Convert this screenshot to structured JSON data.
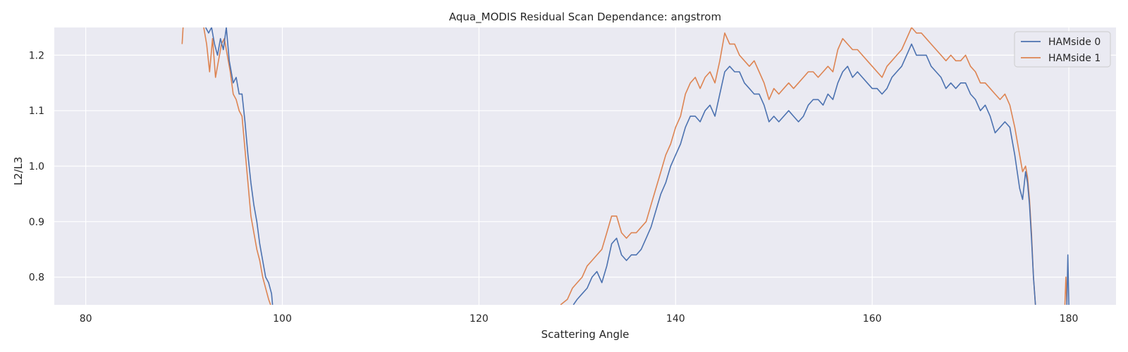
{
  "chart_data": {
    "type": "line",
    "title": "Aqua_MODIS Residual Scan Dependance: angstrom",
    "xlabel": "Scattering Angle",
    "ylabel": "L2/L3",
    "xlim": [
      76.8,
      184.8
    ],
    "ylim": [
      0.75,
      1.25
    ],
    "xticks": [
      80,
      100,
      120,
      140,
      160,
      180
    ],
    "yticks": [
      0.8,
      0.9,
      1.0,
      1.1,
      1.2
    ],
    "xtick_labels": [
      "80",
      "100",
      "120",
      "140",
      "160",
      "180"
    ],
    "ytick_labels": [
      "0.8",
      "0.9",
      "1.0",
      "1.1",
      "1.2"
    ],
    "grid": true,
    "legend_position": "top-right",
    "series": [
      {
        "name": "HAMside 0",
        "color": "#4c72b0",
        "segments": [
          [
            [
              92.2,
              1.25
            ],
            [
              92.5,
              1.24
            ],
            [
              92.8,
              1.25
            ],
            [
              93.1,
              1.22
            ],
            [
              93.4,
              1.2
            ],
            [
              93.7,
              1.23
            ],
            [
              94.0,
              1.21
            ],
            [
              94.3,
              1.25
            ],
            [
              94.6,
              1.19
            ],
            [
              95.0,
              1.15
            ],
            [
              95.3,
              1.16
            ],
            [
              95.6,
              1.13
            ],
            [
              95.9,
              1.13
            ],
            [
              96.2,
              1.08
            ],
            [
              96.5,
              1.02
            ],
            [
              96.8,
              0.97
            ],
            [
              97.1,
              0.93
            ],
            [
              97.4,
              0.9
            ],
            [
              97.7,
              0.86
            ],
            [
              98.0,
              0.83
            ],
            [
              98.3,
              0.8
            ],
            [
              98.6,
              0.79
            ],
            [
              98.9,
              0.77
            ],
            [
              99.0,
              0.75
            ]
          ],
          [
            [
              129.6,
              0.75
            ],
            [
              130.0,
              0.76
            ],
            [
              130.5,
              0.77
            ],
            [
              131.0,
              0.78
            ],
            [
              131.5,
              0.8
            ],
            [
              132.0,
              0.81
            ],
            [
              132.5,
              0.79
            ],
            [
              133.0,
              0.82
            ],
            [
              133.5,
              0.86
            ],
            [
              134.0,
              0.87
            ],
            [
              134.5,
              0.84
            ],
            [
              135.0,
              0.83
            ],
            [
              135.5,
              0.84
            ],
            [
              136.0,
              0.84
            ],
            [
              136.5,
              0.85
            ],
            [
              137.0,
              0.87
            ],
            [
              137.5,
              0.89
            ],
            [
              138.0,
              0.92
            ],
            [
              138.5,
              0.95
            ],
            [
              139.0,
              0.97
            ],
            [
              139.5,
              1.0
            ],
            [
              140.0,
              1.02
            ],
            [
              140.5,
              1.04
            ],
            [
              141.0,
              1.07
            ],
            [
              141.5,
              1.09
            ],
            [
              142.0,
              1.09
            ],
            [
              142.5,
              1.08
            ],
            [
              143.0,
              1.1
            ],
            [
              143.5,
              1.11
            ],
            [
              144.0,
              1.09
            ],
            [
              144.5,
              1.13
            ],
            [
              145.0,
              1.17
            ],
            [
              145.5,
              1.18
            ],
            [
              146.0,
              1.17
            ],
            [
              146.5,
              1.17
            ],
            [
              147.0,
              1.15
            ],
            [
              147.5,
              1.14
            ],
            [
              148.0,
              1.13
            ],
            [
              148.5,
              1.13
            ],
            [
              149.0,
              1.11
            ],
            [
              149.5,
              1.08
            ],
            [
              150.0,
              1.09
            ],
            [
              150.5,
              1.08
            ],
            [
              151.0,
              1.09
            ],
            [
              151.5,
              1.1
            ],
            [
              152.0,
              1.09
            ],
            [
              152.5,
              1.08
            ],
            [
              153.0,
              1.09
            ],
            [
              153.5,
              1.11
            ],
            [
              154.0,
              1.12
            ],
            [
              154.5,
              1.12
            ],
            [
              155.0,
              1.11
            ],
            [
              155.5,
              1.13
            ],
            [
              156.0,
              1.12
            ],
            [
              156.5,
              1.15
            ],
            [
              157.0,
              1.17
            ],
            [
              157.5,
              1.18
            ],
            [
              158.0,
              1.16
            ],
            [
              158.5,
              1.17
            ],
            [
              159.0,
              1.16
            ],
            [
              159.5,
              1.15
            ],
            [
              160.0,
              1.14
            ],
            [
              160.5,
              1.14
            ],
            [
              161.0,
              1.13
            ],
            [
              161.5,
              1.14
            ],
            [
              162.0,
              1.16
            ],
            [
              162.5,
              1.17
            ],
            [
              163.0,
              1.18
            ],
            [
              163.5,
              1.2
            ],
            [
              164.0,
              1.22
            ],
            [
              164.5,
              1.2
            ],
            [
              165.0,
              1.2
            ],
            [
              165.5,
              1.2
            ],
            [
              166.0,
              1.18
            ],
            [
              166.5,
              1.17
            ],
            [
              167.0,
              1.16
            ],
            [
              167.5,
              1.14
            ],
            [
              168.0,
              1.15
            ],
            [
              168.5,
              1.14
            ],
            [
              169.0,
              1.15
            ],
            [
              169.5,
              1.15
            ],
            [
              170.0,
              1.13
            ],
            [
              170.5,
              1.12
            ],
            [
              171.0,
              1.1
            ],
            [
              171.5,
              1.11
            ],
            [
              172.0,
              1.09
            ],
            [
              172.5,
              1.06
            ],
            [
              173.0,
              1.07
            ],
            [
              173.5,
              1.08
            ],
            [
              174.0,
              1.07
            ],
            [
              174.5,
              1.02
            ],
            [
              175.0,
              0.96
            ],
            [
              175.3,
              0.94
            ],
            [
              175.6,
              0.99
            ],
            [
              175.8,
              0.97
            ],
            [
              176.0,
              0.93
            ],
            [
              176.2,
              0.87
            ],
            [
              176.4,
              0.8
            ],
            [
              176.6,
              0.75
            ]
          ],
          [
            [
              179.8,
              0.75
            ],
            [
              179.9,
              0.84
            ],
            [
              180.0,
              0.75
            ]
          ]
        ]
      },
      {
        "name": "HAMside 1",
        "color": "#dd8452",
        "segments": [
          [
            [
              89.8,
              1.22
            ],
            [
              89.9,
              1.25
            ]
          ],
          [
            [
              92.0,
              1.25
            ],
            [
              92.3,
              1.22
            ],
            [
              92.6,
              1.17
            ],
            [
              92.9,
              1.23
            ],
            [
              93.2,
              1.16
            ],
            [
              93.5,
              1.19
            ],
            [
              93.8,
              1.22
            ],
            [
              94.1,
              1.23
            ],
            [
              94.4,
              1.2
            ],
            [
              94.7,
              1.17
            ],
            [
              95.0,
              1.13
            ],
            [
              95.3,
              1.12
            ],
            [
              95.6,
              1.1
            ],
            [
              95.9,
              1.09
            ],
            [
              96.2,
              1.03
            ],
            [
              96.5,
              0.97
            ],
            [
              96.8,
              0.91
            ],
            [
              97.1,
              0.88
            ],
            [
              97.4,
              0.85
            ],
            [
              97.7,
              0.83
            ],
            [
              98.0,
              0.8
            ],
            [
              98.3,
              0.78
            ],
            [
              98.6,
              0.76
            ],
            [
              98.8,
              0.75
            ]
          ],
          [
            [
              128.3,
              0.75
            ],
            [
              129.0,
              0.76
            ],
            [
              129.5,
              0.78
            ],
            [
              130.0,
              0.79
            ],
            [
              130.5,
              0.8
            ],
            [
              131.0,
              0.82
            ],
            [
              131.5,
              0.83
            ],
            [
              132.0,
              0.84
            ],
            [
              132.5,
              0.85
            ],
            [
              133.0,
              0.88
            ],
            [
              133.5,
              0.91
            ],
            [
              134.0,
              0.91
            ],
            [
              134.5,
              0.88
            ],
            [
              135.0,
              0.87
            ],
            [
              135.5,
              0.88
            ],
            [
              136.0,
              0.88
            ],
            [
              136.5,
              0.89
            ],
            [
              137.0,
              0.9
            ],
            [
              137.5,
              0.93
            ],
            [
              138.0,
              0.96
            ],
            [
              138.5,
              0.99
            ],
            [
              139.0,
              1.02
            ],
            [
              139.5,
              1.04
            ],
            [
              140.0,
              1.07
            ],
            [
              140.5,
              1.09
            ],
            [
              141.0,
              1.13
            ],
            [
              141.5,
              1.15
            ],
            [
              142.0,
              1.16
            ],
            [
              142.5,
              1.14
            ],
            [
              143.0,
              1.16
            ],
            [
              143.5,
              1.17
            ],
            [
              144.0,
              1.15
            ],
            [
              144.5,
              1.19
            ],
            [
              145.0,
              1.24
            ],
            [
              145.5,
              1.22
            ],
            [
              146.0,
              1.22
            ],
            [
              146.5,
              1.2
            ],
            [
              147.0,
              1.19
            ],
            [
              147.5,
              1.18
            ],
            [
              148.0,
              1.19
            ],
            [
              148.5,
              1.17
            ],
            [
              149.0,
              1.15
            ],
            [
              149.5,
              1.12
            ],
            [
              150.0,
              1.14
            ],
            [
              150.5,
              1.13
            ],
            [
              151.0,
              1.14
            ],
            [
              151.5,
              1.15
            ],
            [
              152.0,
              1.14
            ],
            [
              152.5,
              1.15
            ],
            [
              153.0,
              1.16
            ],
            [
              153.5,
              1.17
            ],
            [
              154.0,
              1.17
            ],
            [
              154.5,
              1.16
            ],
            [
              155.0,
              1.17
            ],
            [
              155.5,
              1.18
            ],
            [
              156.0,
              1.17
            ],
            [
              156.5,
              1.21
            ],
            [
              157.0,
              1.23
            ],
            [
              157.5,
              1.22
            ],
            [
              158.0,
              1.21
            ],
            [
              158.5,
              1.21
            ],
            [
              159.0,
              1.2
            ],
            [
              159.5,
              1.19
            ],
            [
              160.0,
              1.18
            ],
            [
              160.5,
              1.17
            ],
            [
              161.0,
              1.16
            ],
            [
              161.5,
              1.18
            ],
            [
              162.0,
              1.19
            ],
            [
              162.5,
              1.2
            ],
            [
              163.0,
              1.21
            ],
            [
              163.5,
              1.23
            ],
            [
              164.0,
              1.25
            ],
            [
              164.5,
              1.24
            ],
            [
              165.0,
              1.24
            ],
            [
              165.5,
              1.23
            ],
            [
              166.0,
              1.22
            ],
            [
              166.5,
              1.21
            ],
            [
              167.0,
              1.2
            ],
            [
              167.5,
              1.19
            ],
            [
              168.0,
              1.2
            ],
            [
              168.5,
              1.19
            ],
            [
              169.0,
              1.19
            ],
            [
              169.5,
              1.2
            ],
            [
              170.0,
              1.18
            ],
            [
              170.5,
              1.17
            ],
            [
              171.0,
              1.15
            ],
            [
              171.5,
              1.15
            ],
            [
              172.0,
              1.14
            ],
            [
              172.5,
              1.13
            ],
            [
              173.0,
              1.12
            ],
            [
              173.5,
              1.13
            ],
            [
              174.0,
              1.11
            ],
            [
              174.5,
              1.07
            ],
            [
              175.0,
              1.02
            ],
            [
              175.3,
              0.99
            ],
            [
              175.6,
              1.0
            ],
            [
              175.8,
              0.98
            ],
            [
              176.0,
              0.94
            ],
            [
              176.2,
              0.88
            ],
            [
              176.4,
              0.8
            ],
            [
              176.6,
              0.75
            ]
          ],
          [
            [
              179.6,
              0.75
            ],
            [
              179.7,
              0.8
            ],
            [
              179.8,
              0.75
            ]
          ]
        ]
      }
    ]
  }
}
